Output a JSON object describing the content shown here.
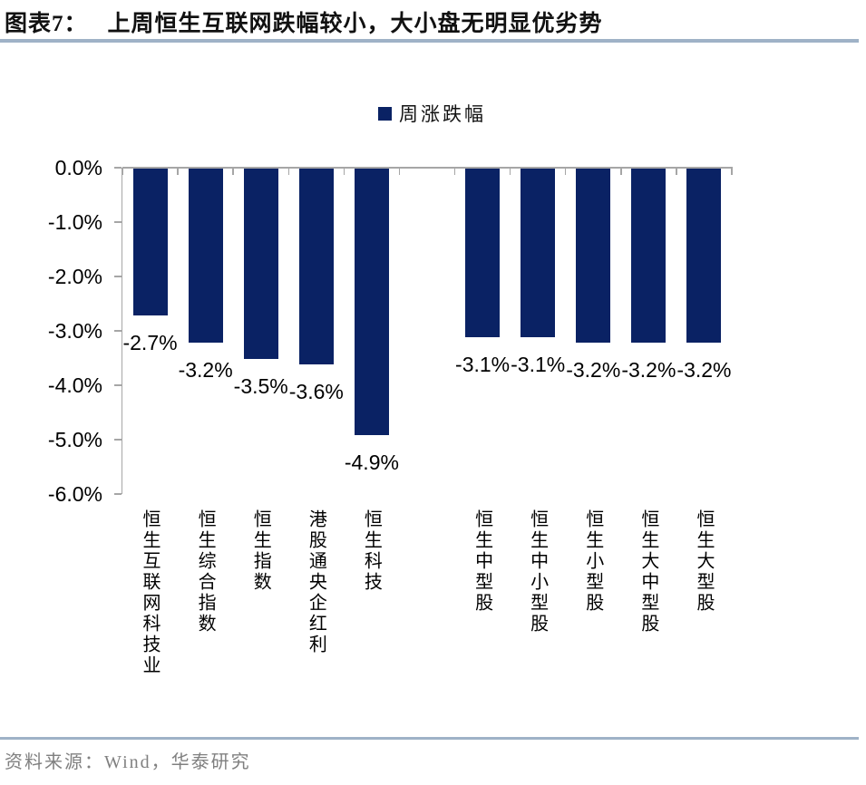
{
  "figure": {
    "title_label": "图表7：",
    "title_text": "上周恒生互联网跌幅较小，大小盘无明显优劣势",
    "source_text": "资料来源：Wind，华泰研究"
  },
  "colors": {
    "bar": "#0a2264",
    "axis": "#a6a6a6",
    "divider": "#9fb2c7",
    "source_text": "#808080"
  },
  "chart_data": {
    "type": "bar",
    "title": "上周恒生互联网跌幅较小，大小盘无明显优劣势",
    "legend": [
      "周涨跌幅"
    ],
    "legend_position": "top-center",
    "categories": [
      "恒生互联网科技业",
      "恒生综合指数",
      "恒生指数",
      "港股通央企红利",
      "恒生科技",
      "",
      "恒生中型股",
      "恒生中小型股",
      "恒生小型股",
      "恒生大中型股",
      "恒生大型股"
    ],
    "values": [
      -2.7,
      -3.2,
      -3.5,
      -3.6,
      -4.9,
      null,
      -3.1,
      -3.1,
      -3.2,
      -3.2,
      -3.2
    ],
    "value_labels": [
      "-2.7%",
      "-3.2%",
      "-3.5%",
      "-3.6%",
      "-4.9%",
      null,
      "-3.1%",
      "-3.1%",
      "-3.2%",
      "-3.2%",
      "-3.2%"
    ],
    "y_tick_labels": [
      "0.0%",
      "-1.0%",
      "-2.0%",
      "-3.0%",
      "-4.0%",
      "-5.0%",
      "-6.0%"
    ],
    "xlabel": "",
    "ylabel": "",
    "ylim": [
      -6.0,
      0.0
    ],
    "grid": false,
    "bar_color": "#0a2264"
  }
}
